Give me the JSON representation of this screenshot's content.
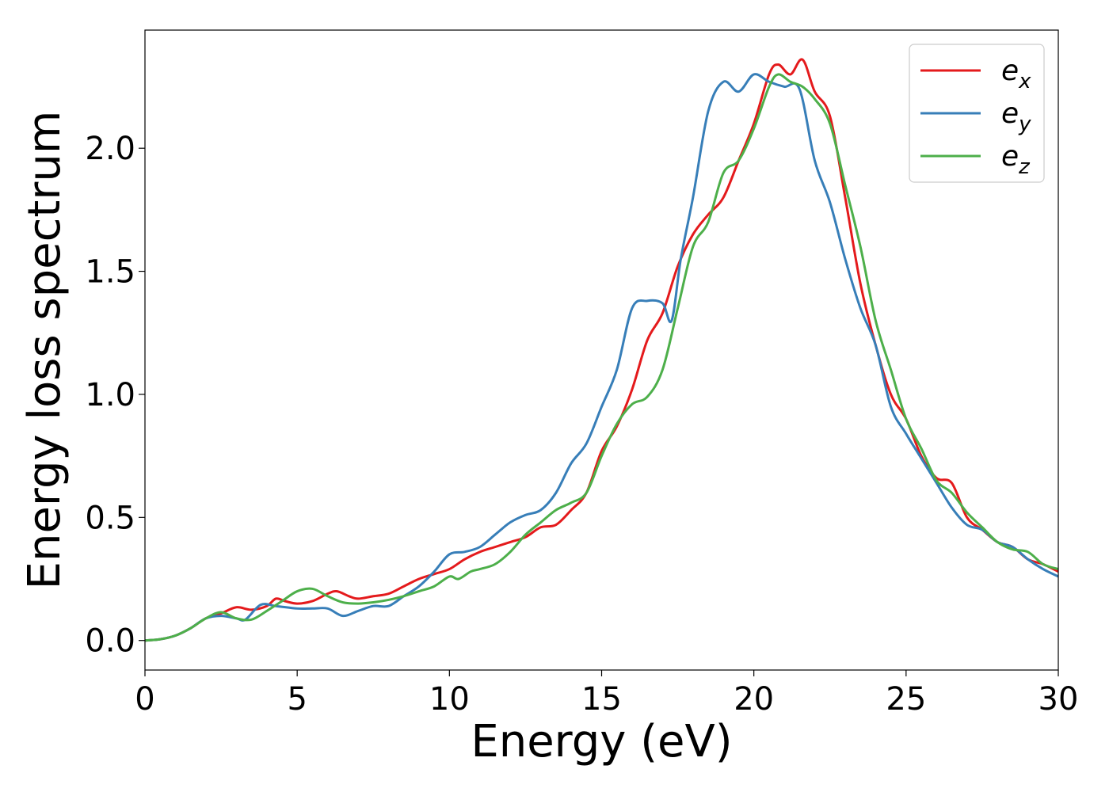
{
  "chart_data": {
    "type": "line",
    "title": "",
    "xlabel": "Energy (eV)",
    "ylabel": "Energy loss spectrum",
    "xlim": [
      0,
      30
    ],
    "ylim": [
      -0.12,
      2.48
    ],
    "xticks": [
      0,
      5,
      10,
      15,
      20,
      25,
      30
    ],
    "xtick_labels": [
      "0",
      "5",
      "10",
      "15",
      "20",
      "25",
      "30"
    ],
    "yticks": [
      0.0,
      0.5,
      1.0,
      1.5,
      2.0
    ],
    "ytick_labels": [
      "0.0",
      "0.5",
      "1.0",
      "1.5",
      "2.0"
    ],
    "grid": false,
    "legend_position": "top-right",
    "series": [
      {
        "name": "ex",
        "label_base": "e",
        "label_sub": "x",
        "color": "#e41a1c",
        "points": [
          [
            0,
            0.0
          ],
          [
            0.5,
            0.005
          ],
          [
            1,
            0.02
          ],
          [
            1.5,
            0.05
          ],
          [
            2,
            0.09
          ],
          [
            2.5,
            0.11
          ],
          [
            3,
            0.135
          ],
          [
            3.5,
            0.125
          ],
          [
            4,
            0.14
          ],
          [
            4.3,
            0.17
          ],
          [
            4.6,
            0.16
          ],
          [
            5,
            0.15
          ],
          [
            5.5,
            0.16
          ],
          [
            6,
            0.19
          ],
          [
            6.3,
            0.2
          ],
          [
            6.7,
            0.18
          ],
          [
            7,
            0.17
          ],
          [
            7.5,
            0.18
          ],
          [
            8,
            0.19
          ],
          [
            8.5,
            0.22
          ],
          [
            9,
            0.25
          ],
          [
            9.5,
            0.27
          ],
          [
            10,
            0.29
          ],
          [
            10.5,
            0.33
          ],
          [
            11,
            0.36
          ],
          [
            11.5,
            0.38
          ],
          [
            12,
            0.4
          ],
          [
            12.5,
            0.42
          ],
          [
            13,
            0.46
          ],
          [
            13.5,
            0.47
          ],
          [
            14,
            0.53
          ],
          [
            14.5,
            0.6
          ],
          [
            15,
            0.77
          ],
          [
            15.5,
            0.87
          ],
          [
            16,
            1.02
          ],
          [
            16.5,
            1.22
          ],
          [
            17,
            1.33
          ],
          [
            17.5,
            1.52
          ],
          [
            18,
            1.65
          ],
          [
            18.5,
            1.73
          ],
          [
            19,
            1.8
          ],
          [
            19.5,
            1.95
          ],
          [
            20,
            2.1
          ],
          [
            20.5,
            2.3
          ],
          [
            20.8,
            2.34
          ],
          [
            21.2,
            2.3
          ],
          [
            21.6,
            2.36
          ],
          [
            22,
            2.23
          ],
          [
            22.5,
            2.13
          ],
          [
            23,
            1.8
          ],
          [
            23.5,
            1.45
          ],
          [
            24,
            1.2
          ],
          [
            24.5,
            1.0
          ],
          [
            25,
            0.9
          ],
          [
            25.5,
            0.75
          ],
          [
            26,
            0.66
          ],
          [
            26.5,
            0.64
          ],
          [
            27,
            0.5
          ],
          [
            27.5,
            0.45
          ],
          [
            28,
            0.4
          ],
          [
            28.5,
            0.38
          ],
          [
            29,
            0.33
          ],
          [
            29.5,
            0.31
          ],
          [
            30,
            0.28
          ]
        ]
      },
      {
        "name": "ey",
        "label_base": "e",
        "label_sub": "y",
        "color": "#377eb8",
        "points": [
          [
            0,
            0.0
          ],
          [
            0.5,
            0.005
          ],
          [
            1,
            0.02
          ],
          [
            1.5,
            0.05
          ],
          [
            2,
            0.09
          ],
          [
            2.5,
            0.1
          ],
          [
            3,
            0.09
          ],
          [
            3.3,
            0.085
          ],
          [
            3.8,
            0.145
          ],
          [
            4.3,
            0.14
          ],
          [
            5,
            0.13
          ],
          [
            5.5,
            0.13
          ],
          [
            6,
            0.13
          ],
          [
            6.5,
            0.1
          ],
          [
            7,
            0.12
          ],
          [
            7.5,
            0.14
          ],
          [
            8,
            0.14
          ],
          [
            8.5,
            0.18
          ],
          [
            9,
            0.22
          ],
          [
            9.5,
            0.28
          ],
          [
            10,
            0.35
          ],
          [
            10.5,
            0.36
          ],
          [
            11,
            0.38
          ],
          [
            11.5,
            0.43
          ],
          [
            12,
            0.48
          ],
          [
            12.5,
            0.51
          ],
          [
            13,
            0.53
          ],
          [
            13.5,
            0.6
          ],
          [
            14,
            0.72
          ],
          [
            14.5,
            0.8
          ],
          [
            15,
            0.95
          ],
          [
            15.5,
            1.1
          ],
          [
            16,
            1.35
          ],
          [
            16.5,
            1.38
          ],
          [
            17,
            1.37
          ],
          [
            17.3,
            1.3
          ],
          [
            17.6,
            1.55
          ],
          [
            18,
            1.8
          ],
          [
            18.5,
            2.15
          ],
          [
            19,
            2.27
          ],
          [
            19.5,
            2.23
          ],
          [
            20,
            2.3
          ],
          [
            20.5,
            2.27
          ],
          [
            21,
            2.25
          ],
          [
            21.5,
            2.24
          ],
          [
            22,
            1.95
          ],
          [
            22.5,
            1.78
          ],
          [
            23,
            1.55
          ],
          [
            23.5,
            1.35
          ],
          [
            24,
            1.2
          ],
          [
            24.5,
            0.95
          ],
          [
            25,
            0.84
          ],
          [
            25.5,
            0.74
          ],
          [
            26,
            0.64
          ],
          [
            26.5,
            0.54
          ],
          [
            27,
            0.47
          ],
          [
            27.5,
            0.45
          ],
          [
            28,
            0.4
          ],
          [
            28.5,
            0.38
          ],
          [
            29,
            0.33
          ],
          [
            29.5,
            0.29
          ],
          [
            30,
            0.26
          ]
        ]
      },
      {
        "name": "ez",
        "label_base": "e",
        "label_sub": "z",
        "color": "#4daf4a",
        "points": [
          [
            0,
            0.0
          ],
          [
            0.5,
            0.005
          ],
          [
            1,
            0.02
          ],
          [
            1.5,
            0.05
          ],
          [
            2,
            0.09
          ],
          [
            2.5,
            0.115
          ],
          [
            3,
            0.09
          ],
          [
            3.5,
            0.085
          ],
          [
            4,
            0.12
          ],
          [
            4.5,
            0.16
          ],
          [
            5,
            0.2
          ],
          [
            5.5,
            0.21
          ],
          [
            6,
            0.18
          ],
          [
            6.5,
            0.155
          ],
          [
            7,
            0.15
          ],
          [
            7.5,
            0.155
          ],
          [
            8,
            0.165
          ],
          [
            8.5,
            0.18
          ],
          [
            9,
            0.2
          ],
          [
            9.5,
            0.22
          ],
          [
            10,
            0.26
          ],
          [
            10.3,
            0.25
          ],
          [
            10.7,
            0.28
          ],
          [
            11,
            0.29
          ],
          [
            11.5,
            0.31
          ],
          [
            12,
            0.36
          ],
          [
            12.5,
            0.43
          ],
          [
            13,
            0.48
          ],
          [
            13.5,
            0.53
          ],
          [
            14,
            0.56
          ],
          [
            14.5,
            0.6
          ],
          [
            15,
            0.75
          ],
          [
            15.5,
            0.88
          ],
          [
            16,
            0.96
          ],
          [
            16.5,
            0.99
          ],
          [
            17,
            1.1
          ],
          [
            17.5,
            1.35
          ],
          [
            18,
            1.6
          ],
          [
            18.5,
            1.7
          ],
          [
            19,
            1.9
          ],
          [
            19.5,
            1.95
          ],
          [
            20,
            2.08
          ],
          [
            20.5,
            2.25
          ],
          [
            20.8,
            2.3
          ],
          [
            21.2,
            2.27
          ],
          [
            21.6,
            2.25
          ],
          [
            22,
            2.2
          ],
          [
            22.5,
            2.1
          ],
          [
            23,
            1.85
          ],
          [
            23.5,
            1.6
          ],
          [
            24,
            1.3
          ],
          [
            24.5,
            1.1
          ],
          [
            25,
            0.9
          ],
          [
            25.5,
            0.78
          ],
          [
            26,
            0.65
          ],
          [
            26.5,
            0.6
          ],
          [
            27,
            0.52
          ],
          [
            27.5,
            0.46
          ],
          [
            28,
            0.4
          ],
          [
            28.5,
            0.37
          ],
          [
            29,
            0.36
          ],
          [
            29.5,
            0.31
          ],
          [
            30,
            0.29
          ]
        ]
      }
    ]
  }
}
